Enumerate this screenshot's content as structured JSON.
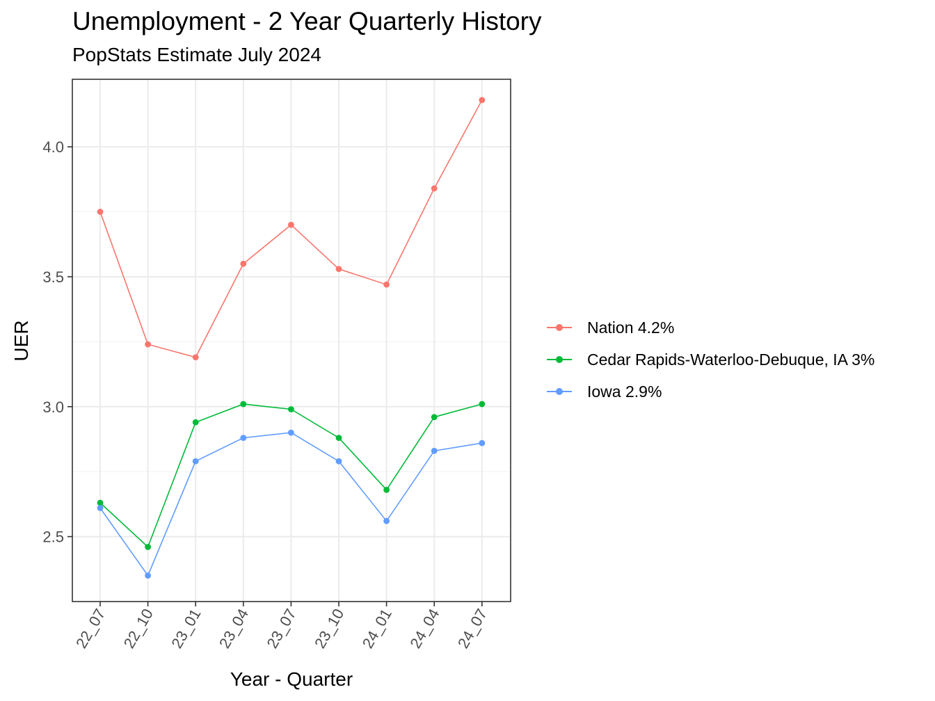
{
  "chart_data": {
    "type": "line",
    "title": "Unemployment - 2 Year Quarterly History",
    "subtitle": "PopStats Estimate July 2024",
    "xlabel": "Year - Quarter",
    "ylabel": "UER",
    "categories": [
      "22_07",
      "22_10",
      "23_01",
      "23_04",
      "23_07",
      "23_10",
      "24_01",
      "24_04",
      "24_07"
    ],
    "ylim": [
      2.25,
      4.26
    ],
    "yticks": [
      2.5,
      3.0,
      3.5,
      4.0
    ],
    "ytick_labels": [
      "2.5",
      "3.0",
      "3.5",
      "4.0"
    ],
    "grid": true,
    "legend_position": "right",
    "series": [
      {
        "name": "Nation 4.2%",
        "color": "#F8766D",
        "values": [
          3.75,
          3.24,
          3.19,
          3.55,
          3.7,
          3.53,
          3.47,
          3.84,
          4.18
        ]
      },
      {
        "name": "Cedar Rapids-Waterloo-Debuque, IA 3%",
        "color": "#00BA38",
        "values": [
          2.63,
          2.46,
          2.94,
          3.01,
          2.99,
          2.88,
          2.68,
          2.96,
          3.01
        ]
      },
      {
        "name": "Iowa 2.9%",
        "color": "#619CFF",
        "values": [
          2.61,
          2.35,
          2.79,
          2.88,
          2.9,
          2.79,
          2.56,
          2.83,
          2.86
        ]
      }
    ]
  }
}
